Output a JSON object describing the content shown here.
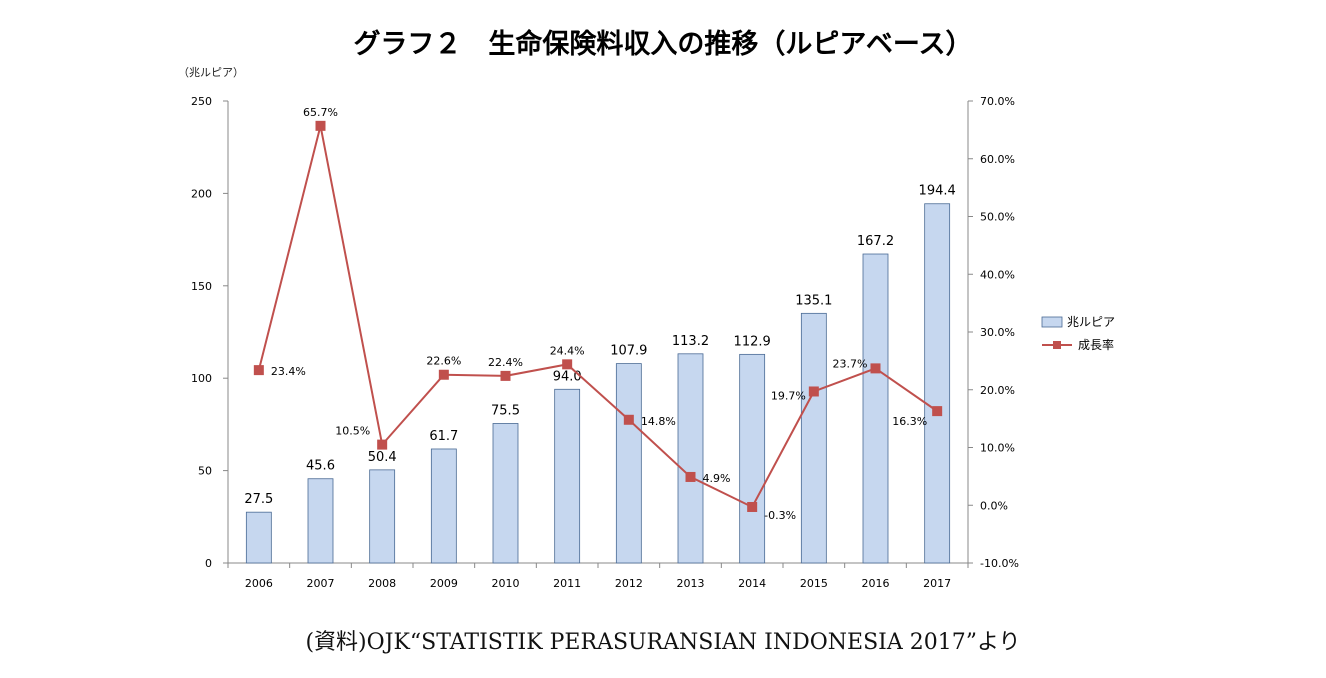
{
  "title": "グラフ２　生命保険料収入の推移（ルピアベース）",
  "y_unit": "（兆ルピア）",
  "source": "(資料)OJK“STATISTIK PERASURANSIAN INDONESIA 2017”より",
  "colors": {
    "bar_fill": "#c6d7ef",
    "bar_stroke": "#4a6a94",
    "line": "#c0504d",
    "marker": "#c0504d",
    "axis": "#888888"
  },
  "chart_data": {
    "type": "bar+line",
    "categories": [
      "2006",
      "2007",
      "2008",
      "2009",
      "2010",
      "2011",
      "2012",
      "2013",
      "2014",
      "2015",
      "2016",
      "2017"
    ],
    "series": [
      {
        "name": "兆ルピア",
        "type": "bar",
        "axis": "left",
        "values": [
          27.5,
          45.6,
          50.4,
          61.7,
          75.5,
          94.0,
          107.9,
          113.2,
          112.9,
          135.1,
          167.2,
          194.4
        ],
        "labels": [
          "27.5",
          "45.6",
          "50.4",
          "61.7",
          "75.5",
          "94.0",
          "107.9",
          "113.2",
          "112.9",
          "135.1",
          "167.2",
          "194.4"
        ]
      },
      {
        "name": "成長率",
        "type": "line",
        "axis": "right",
        "values": [
          23.4,
          65.7,
          10.5,
          22.6,
          22.4,
          24.4,
          14.8,
          4.9,
          -0.3,
          19.7,
          23.7,
          16.3
        ],
        "labels": [
          "23.4%",
          "65.7%",
          "10.5%",
          "22.6%",
          "22.4%",
          "24.4%",
          "14.8%",
          "4.9%",
          "-0.3%",
          "19.7%",
          "23.7%",
          "16.3%"
        ]
      }
    ],
    "left_axis": {
      "ylim": [
        0,
        250
      ],
      "ticks": [
        "0",
        "50",
        "100",
        "150",
        "200",
        "250"
      ]
    },
    "right_axis": {
      "ylim": [
        -10,
        70
      ],
      "ticks": [
        "-10.0%",
        "0.0%",
        "10.0%",
        "20.0%",
        "30.0%",
        "40.0%",
        "50.0%",
        "60.0%",
        "70.0%"
      ]
    },
    "legend": {
      "position": "right",
      "entries": [
        "兆ルピア",
        "成長率"
      ]
    },
    "grid": false
  }
}
